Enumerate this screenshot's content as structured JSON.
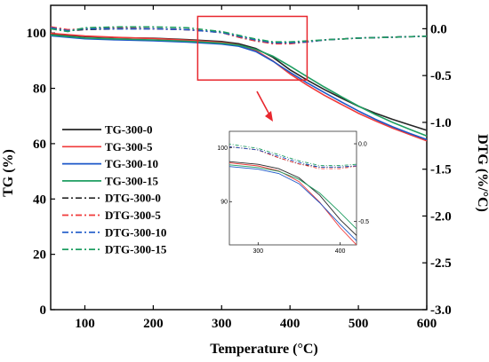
{
  "chart_data": {
    "type": "line",
    "xlabel": "Temperature (°C)",
    "ylabel_left": "TG (%)",
    "ylabel_right": "DTG (%/°C)",
    "xlim": [
      50,
      600
    ],
    "ylim_left": [
      0,
      110
    ],
    "ylim_right": [
      -3.0,
      0.25
    ],
    "x_ticks": [
      "100",
      "200",
      "300",
      "400",
      "500",
      "600"
    ],
    "y_left_ticks": [
      "0",
      "20",
      "40",
      "60",
      "80",
      "100"
    ],
    "y_right_ticks": [
      "0.0",
      "-0.5",
      "-1.0",
      "-1.5",
      "-2.0",
      "-2.5",
      "-3.0"
    ],
    "grid": false,
    "legend_position": "center-left",
    "series": [
      {
        "name": "TG-300-0",
        "axis": "left",
        "style": "solid",
        "color": "#262626",
        "points": [
          [
            50,
            99.6
          ],
          [
            100,
            98.7
          ],
          [
            150,
            98.3
          ],
          [
            200,
            98.1
          ],
          [
            250,
            97.6
          ],
          [
            300,
            96.9
          ],
          [
            325,
            96.1
          ],
          [
            350,
            94.4
          ],
          [
            375,
            91.2
          ],
          [
            400,
            86.7
          ],
          [
            425,
            83.0
          ],
          [
            450,
            79.6
          ],
          [
            475,
            76.5
          ],
          [
            500,
            73.5
          ],
          [
            525,
            71.0
          ],
          [
            550,
            68.8
          ],
          [
            575,
            66.8
          ],
          [
            600,
            64.8
          ]
        ]
      },
      {
        "name": "TG-300-5",
        "axis": "left",
        "style": "solid",
        "color": "#f03a3a",
        "points": [
          [
            50,
            99.9
          ],
          [
            100,
            98.9
          ],
          [
            150,
            98.4
          ],
          [
            200,
            98.0
          ],
          [
            250,
            97.4
          ],
          [
            300,
            96.6
          ],
          [
            325,
            95.7
          ],
          [
            350,
            93.7
          ],
          [
            375,
            89.9
          ],
          [
            400,
            85.2
          ],
          [
            425,
            81.2
          ],
          [
            450,
            77.5
          ],
          [
            475,
            74.2
          ],
          [
            500,
            71.0
          ],
          [
            525,
            68.2
          ],
          [
            550,
            65.6
          ],
          [
            575,
            63.3
          ],
          [
            600,
            61.0
          ]
        ]
      },
      {
        "name": "TG-300-10",
        "axis": "left",
        "style": "solid",
        "color": "#1b57c8",
        "points": [
          [
            50,
            99.0
          ],
          [
            100,
            97.9
          ],
          [
            150,
            97.5
          ],
          [
            200,
            97.2
          ],
          [
            250,
            96.7
          ],
          [
            300,
            96.0
          ],
          [
            325,
            95.2
          ],
          [
            350,
            93.3
          ],
          [
            375,
            89.8
          ],
          [
            400,
            85.8
          ],
          [
            425,
            82.0
          ],
          [
            450,
            78.5
          ],
          [
            475,
            75.1
          ],
          [
            500,
            71.8
          ],
          [
            525,
            68.8
          ],
          [
            550,
            66.1
          ],
          [
            575,
            63.7
          ],
          [
            600,
            61.5
          ]
        ]
      },
      {
        "name": "TG-300-15",
        "axis": "left",
        "style": "solid",
        "color": "#1f9e62",
        "points": [
          [
            50,
            99.3
          ],
          [
            100,
            98.2
          ],
          [
            150,
            97.8
          ],
          [
            200,
            97.5
          ],
          [
            250,
            97.0
          ],
          [
            300,
            96.3
          ],
          [
            325,
            95.6
          ],
          [
            350,
            94.1
          ],
          [
            375,
            91.6
          ],
          [
            400,
            88.0
          ],
          [
            425,
            84.2
          ],
          [
            450,
            80.5
          ],
          [
            475,
            77.0
          ],
          [
            500,
            73.6
          ],
          [
            525,
            70.5
          ],
          [
            550,
            67.7
          ],
          [
            575,
            65.2
          ],
          [
            600,
            62.8
          ]
        ]
      },
      {
        "name": "DTG-300-0",
        "axis": "right",
        "style": "dashdot",
        "color": "#262626",
        "points": [
          [
            50,
            0.02
          ],
          [
            75,
            -0.02
          ],
          [
            100,
            -0.01
          ],
          [
            150,
            0.0
          ],
          [
            200,
            0.0
          ],
          [
            250,
            -0.01
          ],
          [
            300,
            -0.04
          ],
          [
            325,
            -0.09
          ],
          [
            350,
            -0.13
          ],
          [
            375,
            -0.15
          ],
          [
            400,
            -0.15
          ],
          [
            425,
            -0.14
          ],
          [
            450,
            -0.12
          ],
          [
            500,
            -0.1
          ],
          [
            550,
            -0.09
          ],
          [
            600,
            -0.08
          ]
        ]
      },
      {
        "name": "DTG-300-5",
        "axis": "right",
        "style": "dashdot",
        "color": "#f03a3a",
        "points": [
          [
            50,
            0.02
          ],
          [
            75,
            -0.01
          ],
          [
            100,
            0.0
          ],
          [
            150,
            0.01
          ],
          [
            200,
            0.0
          ],
          [
            250,
            -0.01
          ],
          [
            300,
            -0.04
          ],
          [
            325,
            -0.09
          ],
          [
            350,
            -0.13
          ],
          [
            375,
            -0.16
          ],
          [
            400,
            -0.16
          ],
          [
            425,
            -0.14
          ],
          [
            450,
            -0.12
          ],
          [
            500,
            -0.1
          ],
          [
            550,
            -0.09
          ],
          [
            600,
            -0.08
          ]
        ]
      },
      {
        "name": "DTG-300-10",
        "axis": "right",
        "style": "dashdot",
        "color": "#1b57c8",
        "points": [
          [
            50,
            0.01
          ],
          [
            75,
            -0.02
          ],
          [
            100,
            0.0
          ],
          [
            150,
            0.0
          ],
          [
            200,
            0.0
          ],
          [
            250,
            -0.01
          ],
          [
            300,
            -0.04
          ],
          [
            325,
            -0.08
          ],
          [
            350,
            -0.12
          ],
          [
            375,
            -0.15
          ],
          [
            400,
            -0.15
          ],
          [
            425,
            -0.14
          ],
          [
            450,
            -0.12
          ],
          [
            500,
            -0.1
          ],
          [
            550,
            -0.09
          ],
          [
            600,
            -0.08
          ]
        ]
      },
      {
        "name": "DTG-300-15",
        "axis": "right",
        "style": "dashdot",
        "color": "#1f9e62",
        "points": [
          [
            50,
            0.0
          ],
          [
            75,
            -0.03
          ],
          [
            100,
            0.01
          ],
          [
            150,
            0.02
          ],
          [
            200,
            0.02
          ],
          [
            250,
            0.01
          ],
          [
            300,
            -0.03
          ],
          [
            325,
            -0.07
          ],
          [
            350,
            -0.11
          ],
          [
            375,
            -0.14
          ],
          [
            400,
            -0.14
          ],
          [
            425,
            -0.13
          ],
          [
            450,
            -0.12
          ],
          [
            500,
            -0.1
          ],
          [
            550,
            -0.09
          ],
          [
            600,
            -0.08
          ]
        ]
      }
    ],
    "inset": {
      "xlim": [
        265,
        420
      ],
      "ylim_left": [
        82,
        103
      ],
      "ylim_right": [
        -0.65,
        0.08
      ],
      "x_ticks": [
        "300",
        "400"
      ],
      "y_left_ticks": [
        "90",
        "100"
      ],
      "y_right_ticks": [
        "0.0",
        "-0.5"
      ],
      "zoom_box_x": [
        265,
        425
      ],
      "zoom_box_y": [
        83,
        106
      ],
      "box_color": "#e8272e"
    }
  }
}
